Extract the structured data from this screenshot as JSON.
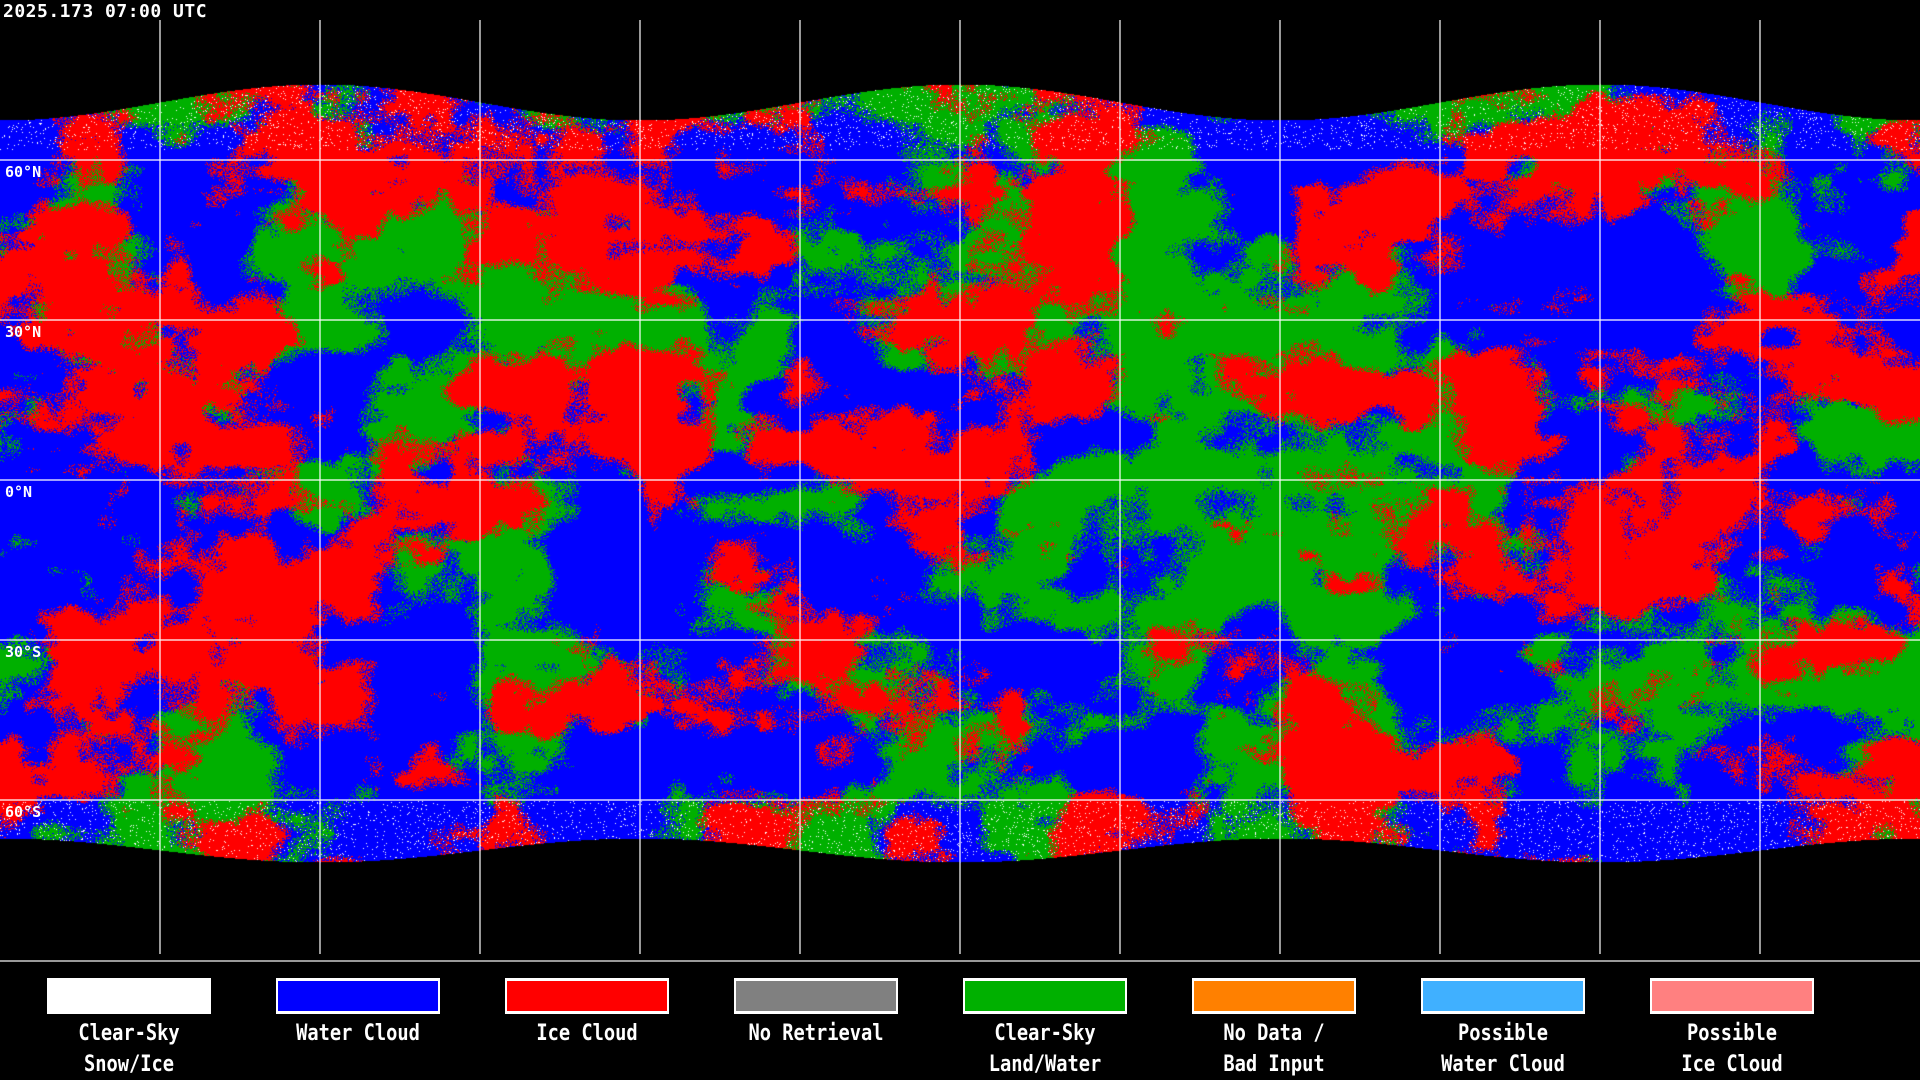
{
  "title": "2025.173 07:00 UTC",
  "latitude_labels": [
    "60°N",
    "30°N",
    "0°N",
    "30°S",
    "60°S"
  ],
  "grid_spacing_degrees": 30,
  "legend": [
    {
      "line1": "Clear-Sky",
      "line2": "Snow/Ice",
      "color": "#ffffff"
    },
    {
      "line1": "Water Cloud",
      "line2": "",
      "color": "#0000ff"
    },
    {
      "line1": "Ice Cloud",
      "line2": "",
      "color": "#ff0000"
    },
    {
      "line1": "No Retrieval",
      "line2": "",
      "color": "#808080"
    },
    {
      "line1": "Clear-Sky",
      "line2": "Land/Water",
      "color": "#00b000"
    },
    {
      "line1": "No Data /",
      "line2": "Bad Input",
      "color": "#ff8000"
    },
    {
      "line1": "Possible",
      "line2": "Water Cloud",
      "color": "#40b0ff"
    },
    {
      "line1": "Possible",
      "line2": "Ice Cloud",
      "color": "#ff8080"
    }
  ]
}
